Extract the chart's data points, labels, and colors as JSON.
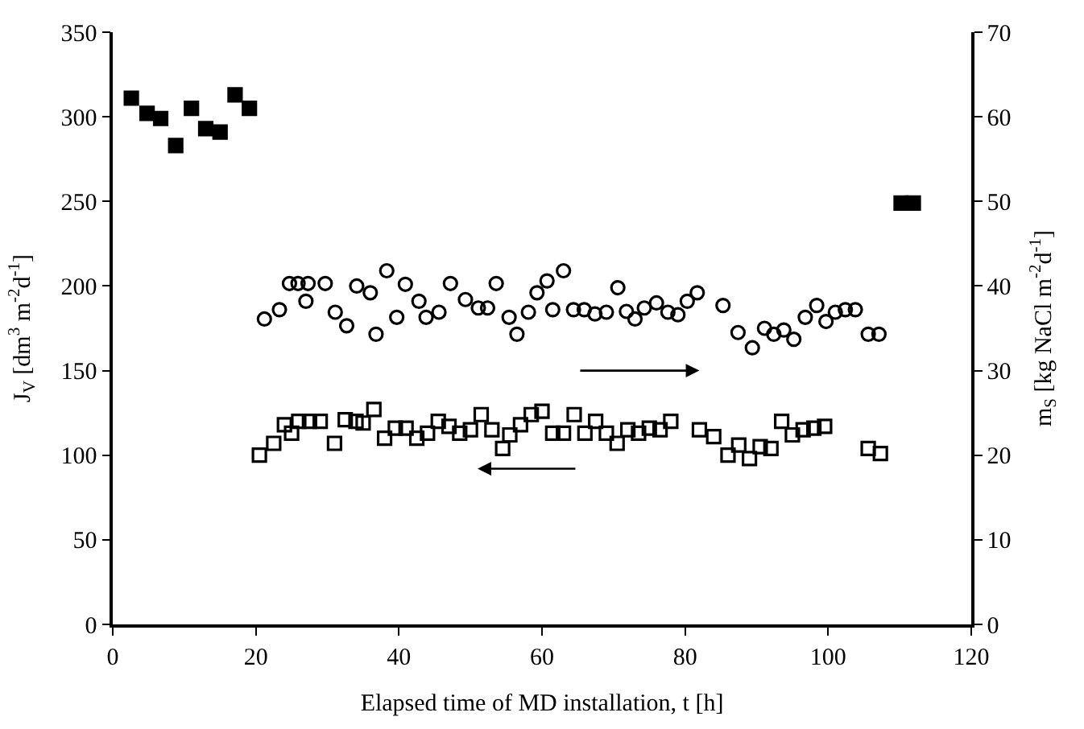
{
  "chart_data": {
    "type": "scatter",
    "xlabel": "Elapsed time of MD installation, t [h]",
    "ylabel": "J$_{V}$ [dm$^{3}$ m$^{-2}$d$^{-1}$]",
    "y2label": "m$_{S}$ [kg NaCl m$^{-2}$d$^{-1}$]",
    "xlim": [
      0,
      120
    ],
    "xticks": [
      0,
      20,
      40,
      60,
      80,
      100,
      120
    ],
    "ylim": [
      0,
      350
    ],
    "yticks": [
      0,
      50,
      100,
      150,
      200,
      250,
      300,
      350
    ],
    "y2lim": [
      0,
      70
    ],
    "y2ticks": [
      0,
      10,
      20,
      30,
      40,
      50,
      60,
      70
    ],
    "series": [
      {
        "color": "#000000",
        "marker": "square",
        "axis": "y",
        "x": [
          2.6,
          4.8,
          6.7,
          8.8,
          11,
          13,
          15,
          17.1,
          19.1,
          110.2,
          111.9
        ],
        "values": [
          311,
          302,
          299,
          283,
          305,
          293,
          291,
          313,
          305,
          249,
          249
        ]
      },
      {
        "color": "#000000",
        "marker": "square-open",
        "axis": "y",
        "x": [
          20.5,
          22.5,
          24,
          25,
          26,
          27.5,
          29,
          31,
          32.5,
          34,
          35,
          36.5,
          38,
          39.5,
          41,
          42.5,
          44,
          45.5,
          47,
          48.5,
          50,
          51.5,
          53,
          54.5,
          55.5,
          57,
          58.5,
          60,
          61.5,
          63,
          64.5,
          66,
          67.5,
          69,
          70.5,
          72,
          73.5,
          75,
          76.5,
          78,
          82,
          84,
          86,
          87.5,
          89,
          90.5,
          92,
          93.5,
          95,
          96.5,
          98,
          99.5,
          105.6,
          107.3
        ],
        "values": [
          100,
          107,
          118,
          113,
          120,
          120,
          120,
          107,
          121,
          120,
          119,
          127,
          110,
          116,
          116,
          110,
          113,
          120,
          117,
          113,
          115,
          124,
          115,
          104,
          112,
          118,
          124,
          126,
          113,
          113,
          124,
          113,
          120,
          113,
          107,
          115,
          113,
          116,
          115,
          120,
          115,
          111,
          100,
          106,
          98,
          105,
          104,
          120,
          112,
          115,
          116,
          117,
          104,
          101
        ]
      },
      {
        "color": "#000000",
        "marker": "circle-open",
        "axis": "y2",
        "x": [
          21.2,
          23.3,
          24.7,
          25.9,
          27,
          27.3,
          29.7,
          31.1,
          32.7,
          34.1,
          36,
          36.8,
          38.3,
          39.7,
          40.9,
          42.8,
          43.8,
          45.6,
          47.2,
          49.3,
          51.1,
          52.4,
          53.6,
          55.4,
          56.5,
          58.1,
          59.3,
          60.7,
          61.5,
          63,
          64.4,
          65.9,
          67.4,
          69,
          70.6,
          71.8,
          73,
          74.3,
          76,
          77.6,
          79,
          80.3,
          81.7,
          85.3,
          87.4,
          89.4,
          91.1,
          92.4,
          93.8,
          95.2,
          96.8,
          98.4,
          99.7,
          101,
          102.4,
          103.8,
          105.6,
          107.1
        ],
        "values": [
          36.1,
          37.2,
          40.3,
          40.3,
          38.2,
          40.3,
          40.3,
          36.9,
          35.3,
          40.0,
          39.2,
          34.3,
          41.8,
          36.3,
          40.2,
          38.2,
          36.3,
          36.9,
          40.3,
          38.4,
          37.4,
          37.4,
          40.3,
          36.3,
          34.3,
          36.9,
          39.2,
          40.6,
          37.2,
          41.8,
          37.2,
          37.2,
          36.7,
          36.9,
          39.8,
          37.0,
          36.1,
          37.4,
          38.0,
          36.9,
          36.6,
          38.2,
          39.2,
          37.7,
          34.5,
          32.7,
          35.0,
          34.3,
          34.8,
          33.7,
          36.3,
          37.7,
          35.8,
          36.9,
          37.2,
          37.2,
          34.3,
          34.3
        ]
      }
    ]
  }
}
